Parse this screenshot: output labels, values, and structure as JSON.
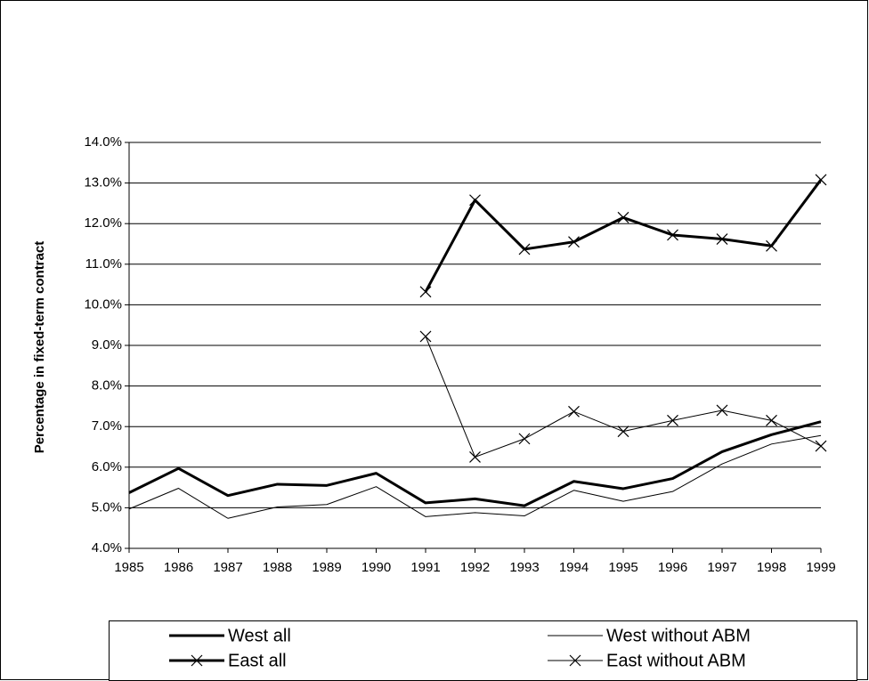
{
  "chart_data": {
    "type": "line",
    "y_label": "Percentage in fixed-term contract",
    "categories": [
      "1985",
      "1986",
      "1987",
      "1988",
      "1989",
      "1990",
      "1991",
      "1992",
      "1993",
      "1994",
      "1995",
      "1996",
      "1997",
      "1998",
      "1999"
    ],
    "series": [
      {
        "name": "West all",
        "color": "#000000",
        "line_width": 3,
        "marker": "none",
        "values": [
          5.37,
          5.97,
          5.3,
          5.58,
          5.55,
          5.85,
          5.12,
          5.22,
          5.05,
          5.65,
          5.47,
          5.72,
          6.38,
          6.8,
          7.12
        ]
      },
      {
        "name": "West without ABM",
        "color": "#000000",
        "line_width": 1,
        "marker": "none",
        "values": [
          4.97,
          5.48,
          4.74,
          5.02,
          5.08,
          5.52,
          4.78,
          4.88,
          4.8,
          5.43,
          5.16,
          5.4,
          6.08,
          6.57,
          6.78
        ]
      },
      {
        "name": "East all",
        "color": "#000000",
        "line_width": 3,
        "marker": "x",
        "values": [
          null,
          null,
          null,
          null,
          null,
          null,
          10.32,
          12.58,
          11.37,
          11.55,
          12.15,
          11.72,
          11.62,
          11.45,
          13.08
        ]
      },
      {
        "name": "East without ABM",
        "color": "#000000",
        "line_width": 1,
        "marker": "x",
        "values": [
          null,
          null,
          null,
          null,
          null,
          null,
          9.22,
          6.25,
          6.7,
          7.37,
          6.88,
          7.15,
          7.4,
          7.15,
          6.52
        ]
      }
    ],
    "ylim": [
      4,
      14
    ],
    "yticks": [
      {
        "value": 4,
        "label": "4.0%"
      },
      {
        "value": 5,
        "label": "5.0%"
      },
      {
        "value": 6,
        "label": "6.0%"
      },
      {
        "value": 7,
        "label": "7.0%"
      },
      {
        "value": 8,
        "label": "8.0%"
      },
      {
        "value": 9,
        "label": "9.0%"
      },
      {
        "value": 10,
        "label": "10.0%"
      },
      {
        "value": 11,
        "label": "11.0%"
      },
      {
        "value": 12,
        "label": "12.0%"
      },
      {
        "value": 13,
        "label": "13.0%"
      },
      {
        "value": 14,
        "label": "14.0%"
      }
    ],
    "grid": true,
    "legend": "bottom"
  }
}
